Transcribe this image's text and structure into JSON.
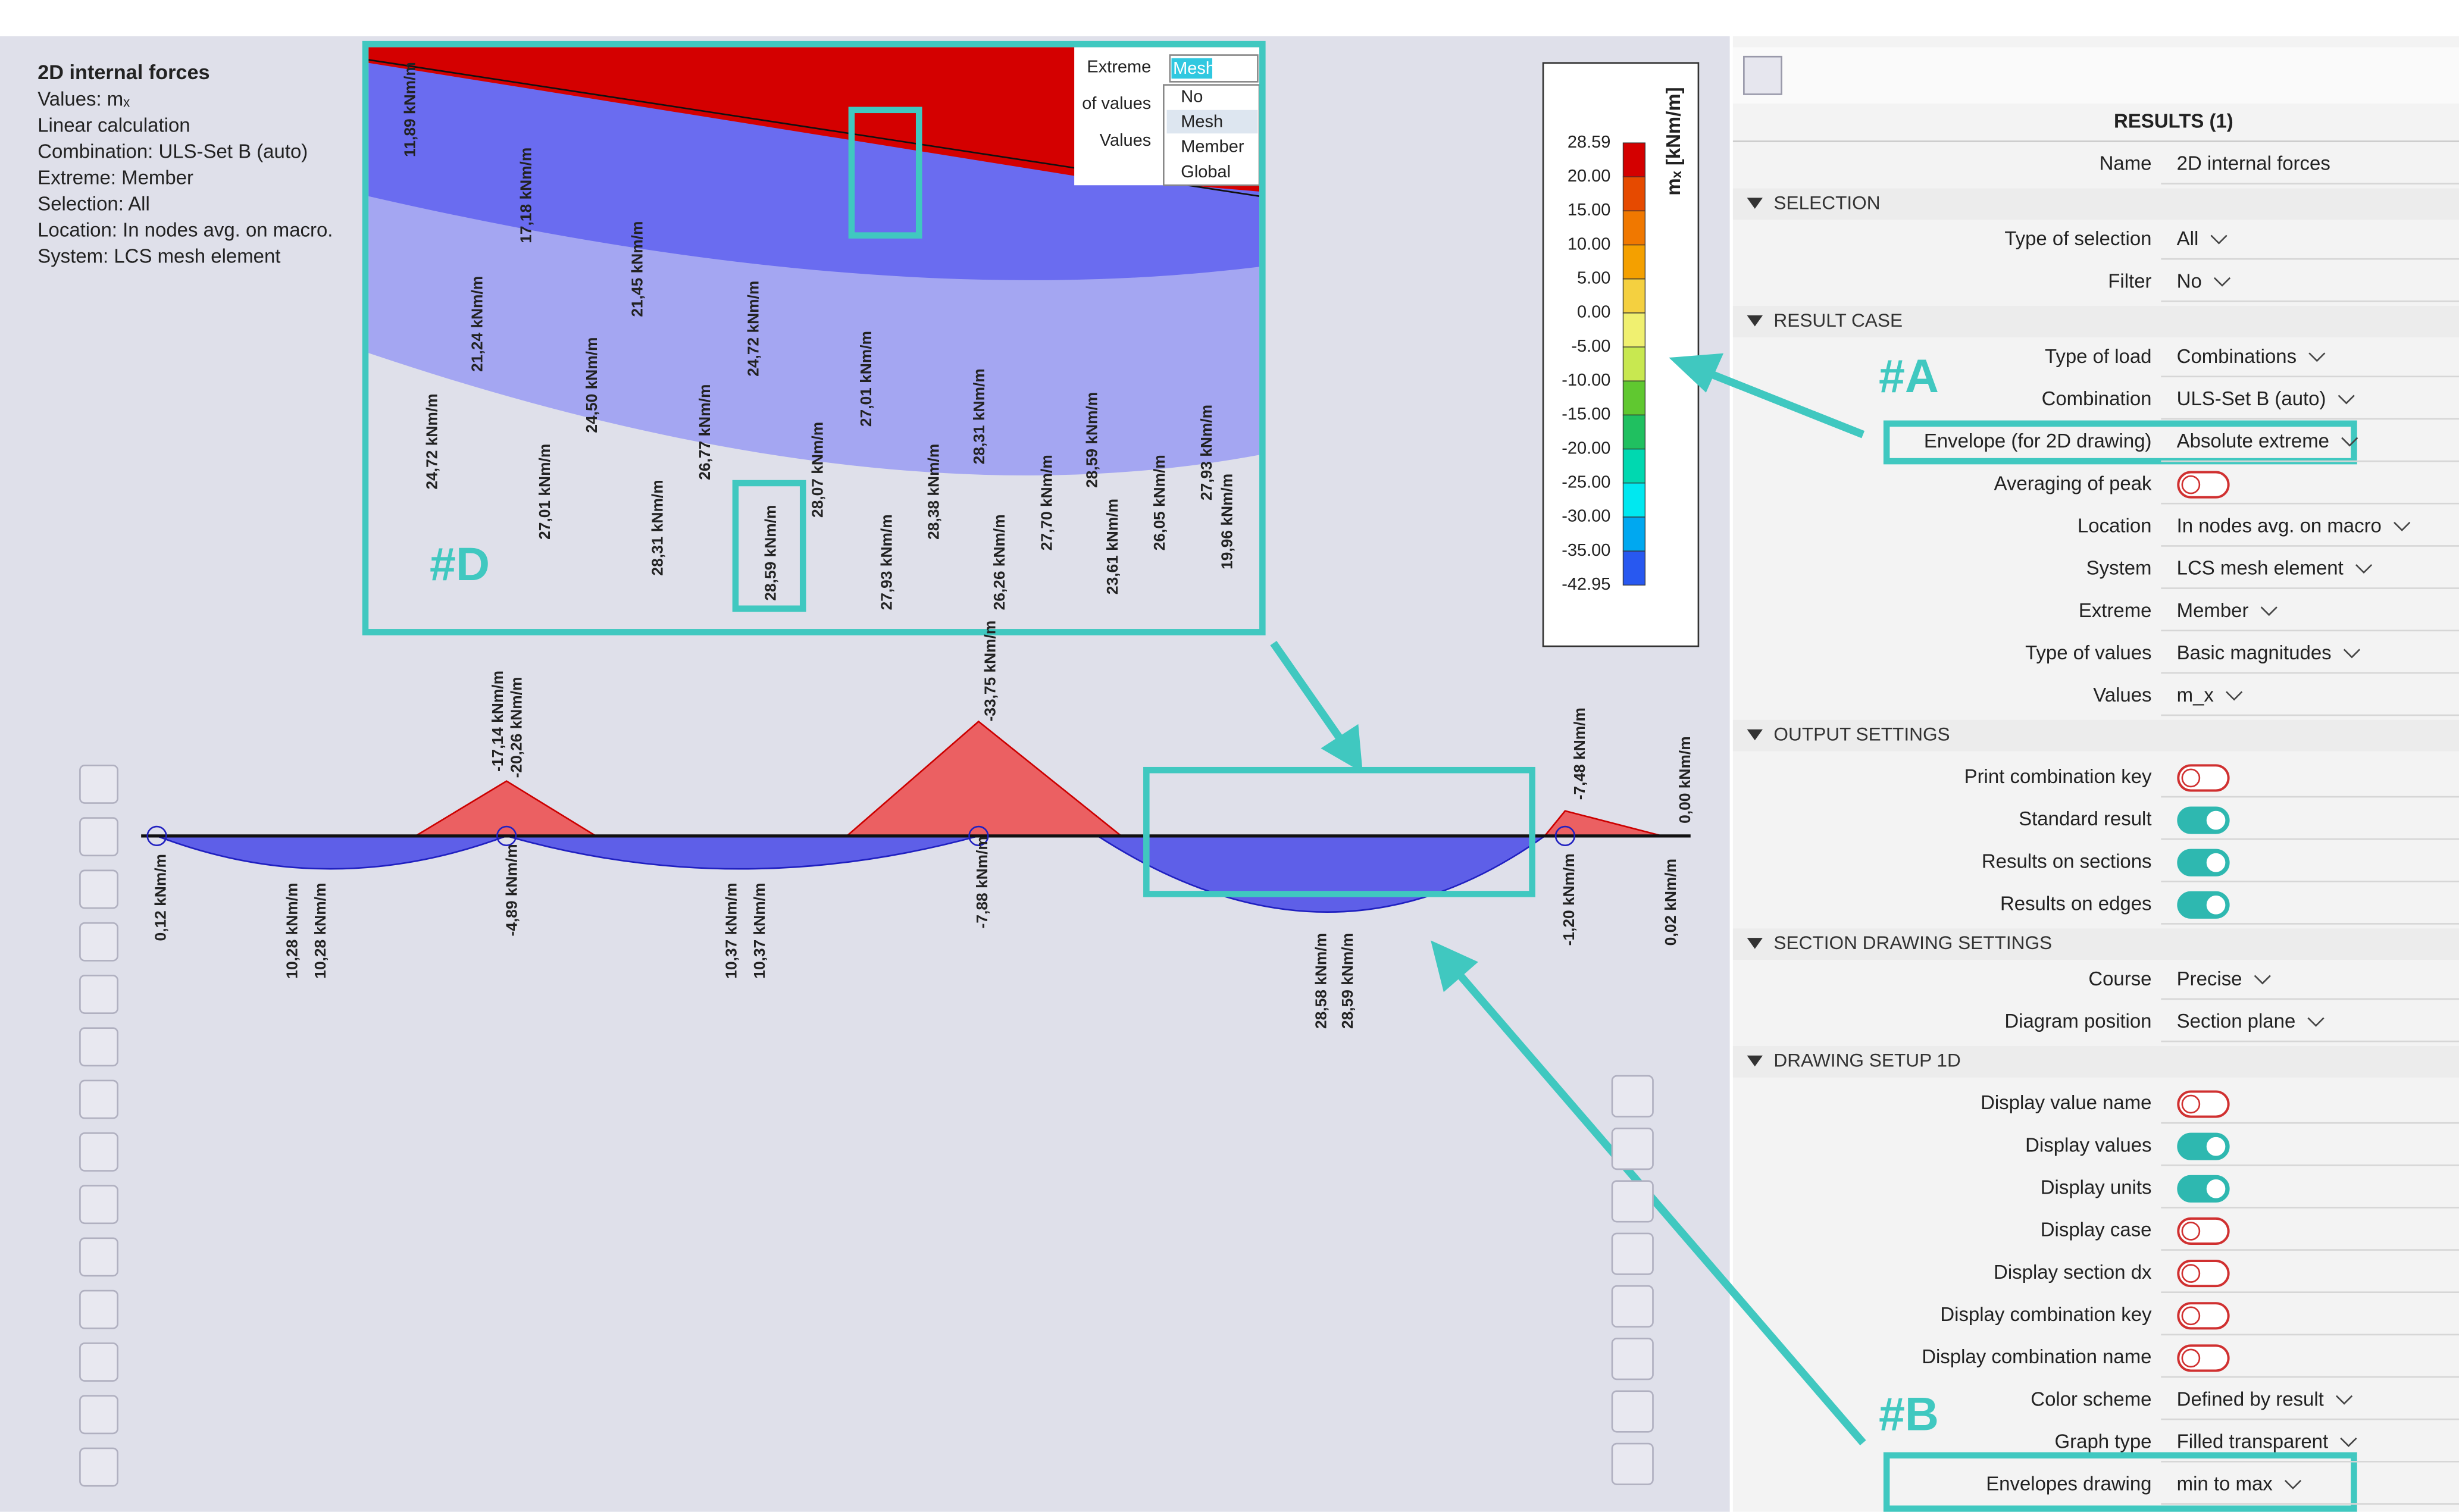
{
  "info": {
    "title": "2D internal forces",
    "lines": [
      "Values: mₓ",
      "Linear calculation",
      "Combination: ULS-Set B (auto)",
      "Extreme: Member",
      "Selection: All",
      "Location: In nodes avg. on macro.",
      "System: LCS mesh element"
    ]
  },
  "legend": {
    "title": "mₓ [kNm/m]",
    "labels": [
      "28.59",
      "20.00",
      "15.00",
      "10.00",
      "5.00",
      "0.00",
      "-5.00",
      "-10.00",
      "-15.00",
      "-20.00",
      "-25.00",
      "-30.00",
      "-35.00",
      "-42.95"
    ]
  },
  "panel": {
    "header": "RESULTS (1)",
    "name": {
      "label": "Name",
      "value": "2D internal forces"
    },
    "sections": [
      {
        "title": "SELECTION",
        "rows": [
          {
            "label": "Type of selection",
            "value": "All"
          },
          {
            "label": "Filter",
            "value": "No"
          }
        ]
      },
      {
        "title": "RESULT CASE",
        "rows": [
          {
            "label": "Type of load",
            "value": "Combinations"
          },
          {
            "label": "Combination",
            "value": "ULS-Set B (auto)"
          },
          {
            "label": "Envelope (for 2D drawing)",
            "value": "Absolute extreme"
          },
          {
            "label": "Averaging of peak",
            "on": false
          },
          {
            "label": "Location",
            "value": "In nodes avg. on macro"
          },
          {
            "label": "System",
            "value": "LCS mesh element"
          },
          {
            "label": "Extreme",
            "value": "Member"
          },
          {
            "label": "Type of values",
            "value": "Basic magnitudes"
          },
          {
            "label": "Values",
            "value": "m_x"
          }
        ]
      },
      {
        "title": "OUTPUT SETTINGS",
        "rows": [
          {
            "label": "Print combination key",
            "on": false
          },
          {
            "label": "Standard result",
            "on": true
          },
          {
            "label": "Results on sections",
            "on": true
          },
          {
            "label": "Results on edges",
            "on": true
          }
        ]
      },
      {
        "title": "SECTION DRAWING SETTINGS",
        "rows": [
          {
            "label": "Course",
            "value": "Precise"
          },
          {
            "label": "Diagram position",
            "value": "Section plane"
          }
        ]
      },
      {
        "title": "DRAWING SETUP 1D",
        "rows": [
          {
            "label": "Display value name",
            "on": false
          },
          {
            "label": "Display values",
            "on": true
          },
          {
            "label": "Display units",
            "on": true
          },
          {
            "label": "Display case",
            "on": false
          },
          {
            "label": "Display section dx",
            "on": false
          },
          {
            "label": "Display combination key",
            "on": false
          },
          {
            "label": "Display combination name",
            "on": false
          },
          {
            "label": "Color scheme",
            "value": "Defined by result"
          },
          {
            "label": "Graph type",
            "value": "Filled transparent"
          },
          {
            "label": "Envelopes drawing",
            "value": "min to max"
          }
        ]
      }
    ]
  },
  "callouts": [
    "#A",
    "#B",
    "#D"
  ],
  "beam_labels": [
    "0,12 kNm/m",
    "10,28 kNm/m",
    "10,28 kNm/m",
    "-4,89 kNm/m",
    "-17,14 kNm/m",
    "-20,26 kNm/m",
    "10,37 kNm/m",
    "10,37 kNm/m",
    "-7,88 kNm/m",
    "-33,75 kNm/m",
    "28,58 kNm/m",
    "28,59 kNm/m",
    "-1,20 kNm/m",
    "-7,48 kNm/m",
    "0,00 kNm/m",
    "0,02 kNm/m"
  ],
  "inset": {
    "dropdown": {
      "labels": [
        "Extreme",
        "of values",
        "Values"
      ],
      "selected": "Mesh",
      "options": [
        "No",
        "Mesh",
        "Member",
        "Global"
      ]
    },
    "value_labels": [
      "11,89 kNm/m",
      "17,18 kNm/m",
      "21,45 kNm/m",
      "24,72 kNm/m",
      "27,01 kNm/m",
      "21,24 kNm/m",
      "24,50 kNm/m",
      "26,77 kNm/m",
      "28,07 kNm/m",
      "24,72 kNm/m",
      "27,01 kNm/m",
      "28,31 kNm/m",
      "28,59 kNm/m",
      "27,93 kNm/m",
      "28,38 kNm/m",
      "28,31 kNm/m",
      "26,26 kNm/m",
      "27,70 kNm/m",
      "28,59 kNm/m",
      "23,61 kNm/m",
      "26,05 kNm/m",
      "27,93 kNm/m",
      "19,96 kNm/m"
    ]
  }
}
